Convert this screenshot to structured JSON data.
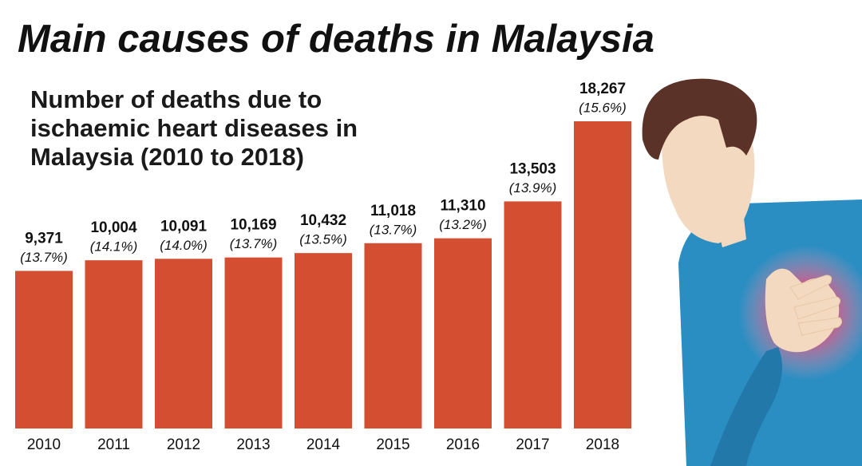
{
  "chart_data": {
    "type": "bar",
    "title": "Main causes of deaths in Malaysia",
    "subtitle_lines": [
      "Number of deaths due to",
      "ischaemic heart diseases in",
      "Malaysia (2010 to 2018)"
    ],
    "categories": [
      "2010",
      "2011",
      "2012",
      "2013",
      "2014",
      "2015",
      "2016",
      "2017",
      "2018"
    ],
    "values": [
      9371,
      10004,
      10091,
      10169,
      10432,
      11018,
      11310,
      13503,
      18267
    ],
    "value_labels": [
      "9,371",
      "10,004",
      "10,091",
      "10,169",
      "10,432",
      "11,018",
      "11,310",
      "13,503",
      "18,267"
    ],
    "percent_values": [
      13.7,
      14.1,
      14.0,
      13.7,
      13.5,
      13.7,
      13.2,
      13.9,
      15.6
    ],
    "percent_labels": [
      "(13.7%)",
      "(14.1%)",
      "(14.0%)",
      "(13.7%)",
      "(13.5%)",
      "(13.7%)",
      "(13.2%)",
      "(13.9%)",
      "(15.6%)"
    ],
    "color": "#d44f31"
  }
}
